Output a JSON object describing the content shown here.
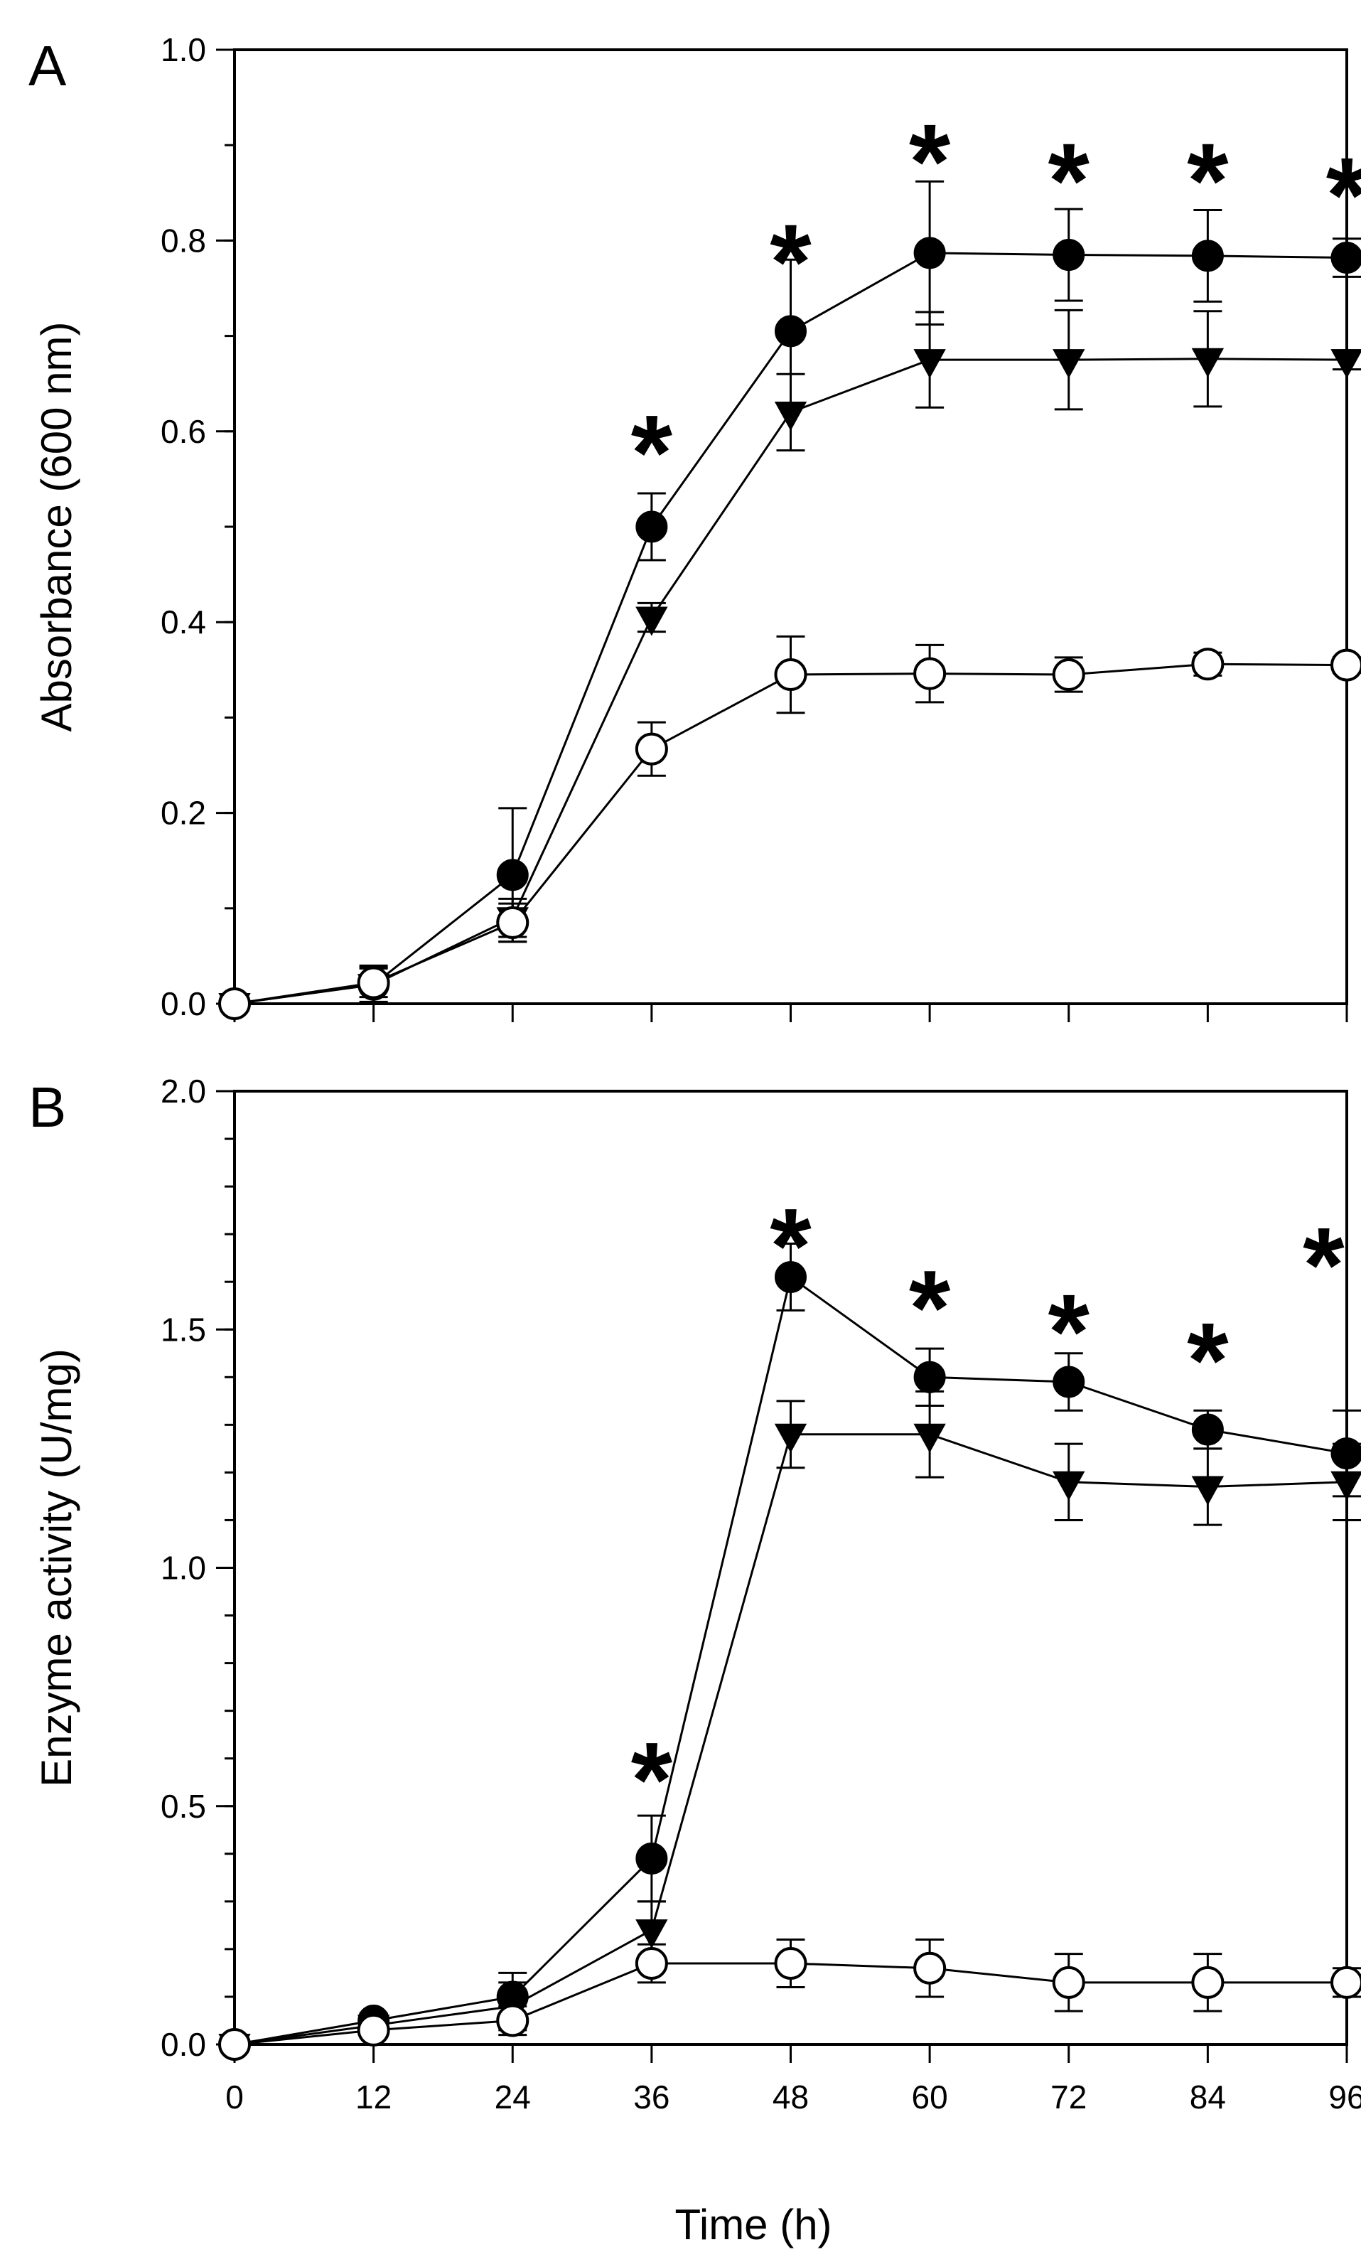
{
  "chart_data": [
    {
      "type": "line",
      "panel_label": "A",
      "ylabel": "Absorbance (600 nm)",
      "xlabel": "Time (h)",
      "xlim": [
        0,
        96
      ],
      "ylim": [
        0,
        1.0
      ],
      "x_ticks": [
        0,
        12,
        24,
        36,
        48,
        60,
        72,
        84,
        96
      ],
      "y_ticks": [
        0.0,
        0.2,
        0.4,
        0.6,
        0.8,
        1.0
      ],
      "y_tick_labels": [
        "0.0",
        "0.2",
        "0.4",
        "0.6",
        "0.8",
        "1.0"
      ],
      "y_minor_step": 0.1,
      "x": [
        0,
        12,
        24,
        36,
        48,
        60,
        72,
        84,
        96
      ],
      "series": [
        {
          "marker": "filled-circle",
          "values": [
            0.0,
            0.02,
            0.135,
            0.5,
            0.705,
            0.787,
            0.785,
            0.784,
            0.782
          ],
          "errors": [
            0.005,
            0.02,
            0.07,
            0.035,
            0.075,
            0.075,
            0.048,
            0.048,
            0.02
          ]
        },
        {
          "marker": "filled-triangle-down",
          "values": [
            0.0,
            0.02,
            0.09,
            0.405,
            0.62,
            0.675,
            0.675,
            0.676,
            0.675
          ],
          "errors": [
            0.005,
            0.018,
            0.02,
            0.015,
            0.04,
            0.05,
            0.052,
            0.05,
            0.01
          ]
        },
        {
          "marker": "open-circle",
          "values": [
            0.0,
            0.022,
            0.085,
            0.267,
            0.345,
            0.346,
            0.345,
            0.356,
            0.355
          ],
          "errors": [
            0.005,
            0.015,
            0.02,
            0.028,
            0.04,
            0.03,
            0.018,
            0.012,
            0.008
          ]
        }
      ],
      "annotations": [
        {
          "text": "*",
          "x": 36,
          "y": 0.61
        },
        {
          "text": "*",
          "x": 48,
          "y": 0.81
        },
        {
          "text": "*",
          "x": 60,
          "y": 0.915
        },
        {
          "text": "*",
          "x": 72,
          "y": 0.895
        },
        {
          "text": "*",
          "x": 84,
          "y": 0.895
        },
        {
          "text": "*",
          "x": 96,
          "y": 0.88
        }
      ]
    },
    {
      "type": "line",
      "panel_label": "B",
      "ylabel": "Enzyme activity (U/mg)",
      "xlabel": "Time (h)",
      "xlim": [
        0,
        96
      ],
      "ylim": [
        0,
        2.0
      ],
      "x_ticks": [
        0,
        12,
        24,
        36,
        48,
        60,
        72,
        84,
        96
      ],
      "x_tick_labels": [
        "0",
        "12",
        "24",
        "36",
        "48",
        "60",
        "72",
        "84",
        "96"
      ],
      "y_ticks": [
        0.0,
        0.5,
        1.0,
        1.5,
        2.0
      ],
      "y_tick_labels": [
        "0.0",
        "0.5",
        "1.0",
        "1.5",
        "2.0"
      ],
      "y_minor_step": 0.1,
      "x": [
        0,
        12,
        24,
        36,
        48,
        60,
        72,
        84,
        96
      ],
      "series": [
        {
          "marker": "filled-circle",
          "values": [
            0.0,
            0.05,
            0.1,
            0.39,
            1.61,
            1.4,
            1.39,
            1.29,
            1.24
          ],
          "errors": [
            0.005,
            0.015,
            0.05,
            0.09,
            0.07,
            0.06,
            0.06,
            0.04,
            0.09
          ]
        },
        {
          "marker": "filled-triangle-down",
          "values": [
            0.0,
            0.04,
            0.08,
            0.24,
            1.28,
            1.28,
            1.18,
            1.17,
            1.18
          ],
          "errors": [
            0.005,
            0.015,
            0.05,
            0.06,
            0.07,
            0.09,
            0.08,
            0.08,
            0.08
          ]
        },
        {
          "marker": "open-circle",
          "values": [
            0.0,
            0.03,
            0.05,
            0.17,
            0.17,
            0.16,
            0.13,
            0.13,
            0.13
          ],
          "errors": [
            0.005,
            0.015,
            0.03,
            0.04,
            0.05,
            0.06,
            0.06,
            0.06,
            0.03
          ]
        }
      ],
      "annotations": [
        {
          "text": "*",
          "x": 36,
          "y": 0.62
        },
        {
          "text": "*",
          "x": 48,
          "y": 1.74
        },
        {
          "text": "*",
          "x": 60,
          "y": 1.61
        },
        {
          "text": "*",
          "x": 72,
          "y": 1.56
        },
        {
          "text": "*",
          "x": 84,
          "y": 1.5
        },
        {
          "text": "*",
          "x": 94,
          "y": 1.7
        }
      ]
    }
  ]
}
